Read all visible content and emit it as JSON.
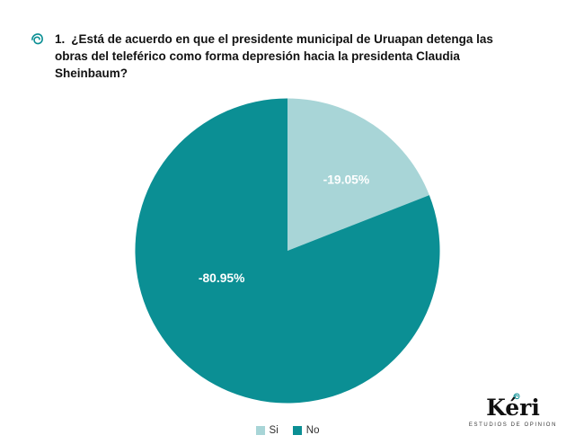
{
  "question": {
    "number": "1.",
    "text": "¿Está de acuerdo en que el presidente municipal de Uruapan detenga las obras del teleférico como forma depresión hacia la presidenta Claudia Sheinbaum?"
  },
  "chart_data": {
    "type": "pie",
    "categories": [
      "Si",
      "No"
    ],
    "values": [
      19.05,
      80.95
    ],
    "labels": [
      "-19.05%",
      "-80.95%"
    ],
    "colors": [
      "#a8d5d7",
      "#0b8f94"
    ],
    "start_angle_deg": 0,
    "direction": "clockwise",
    "legend_position": "bottom",
    "label_pos": [
      {
        "angle_deg": 40,
        "radius_frac": 0.6
      },
      {
        "angle_deg": 247,
        "radius_frac": 0.47
      }
    ]
  },
  "legend": {
    "items": [
      {
        "label": "Si",
        "color": "#a8d5d7"
      },
      {
        "label": "No",
        "color": "#0b8f94"
      }
    ]
  },
  "logo": {
    "text": "Kéri",
    "subtext": "ESTUDIOS DE OPINION",
    "accent_color": "#0b8f94"
  }
}
